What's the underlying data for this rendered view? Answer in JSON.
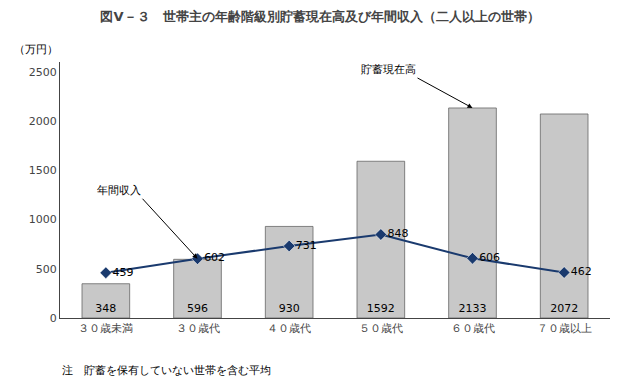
{
  "chart_data": {
    "type": "bar",
    "title": "図V－３　世帯主の年齢階級別貯蓄現在高及び年間収入（二人以上の世帯）",
    "ylabel": "（万円）",
    "categories": [
      "３０歳未満",
      "３０歳代",
      "４０歳代",
      "５０歳代",
      "６０歳代",
      "７０歳以上"
    ],
    "series": [
      {
        "name": "貯蓄現在高",
        "type": "bar",
        "color": "#c8c8c8",
        "values": [
          348,
          596,
          930,
          1592,
          2133,
          2072
        ]
      },
      {
        "name": "年間収入",
        "type": "line",
        "color": "#1a3a6e",
        "marker": "diamond",
        "values": [
          459,
          602,
          731,
          848,
          606,
          462
        ]
      }
    ],
    "annotations": [
      {
        "text": "貯蓄現在高",
        "x": "６０歳代"
      },
      {
        "text": "年間収入",
        "x": "３０歳代"
      },
      {
        "text": "注　貯蓄を保有していない世帯を含む平均"
      }
    ],
    "ylim": [
      0,
      2600
    ],
    "yticks": [
      0,
      500,
      1000,
      1500,
      2000,
      2500
    ],
    "grid": false,
    "data_labels": true
  }
}
